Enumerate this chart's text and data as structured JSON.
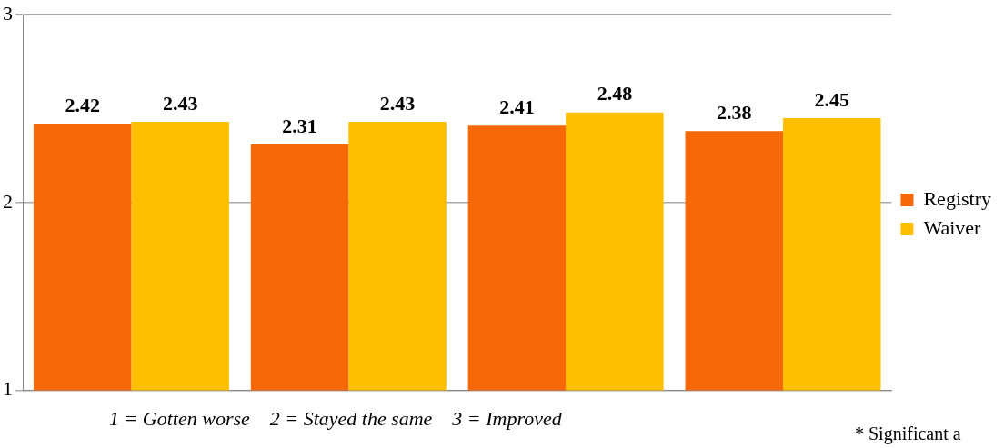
{
  "chart_data": {
    "type": "bar",
    "categories": [
      null,
      null,
      null,
      null
    ],
    "series": [
      {
        "name": "Registry",
        "color": "#f76808",
        "values": [
          2.42,
          2.31,
          2.41,
          2.38
        ]
      },
      {
        "name": "Waiver",
        "color": "#fdbf00",
        "values": [
          2.43,
          2.43,
          2.48,
          2.45
        ]
      }
    ],
    "ylim": [
      1,
      3
    ],
    "yticks": [
      1,
      2,
      3
    ],
    "grid": "y",
    "legend": "right",
    "data_labels": true,
    "annotations": [
      "1 = Gotten worse    2 = Stayed the same    3 = Improved",
      "* Significant a"
    ]
  }
}
